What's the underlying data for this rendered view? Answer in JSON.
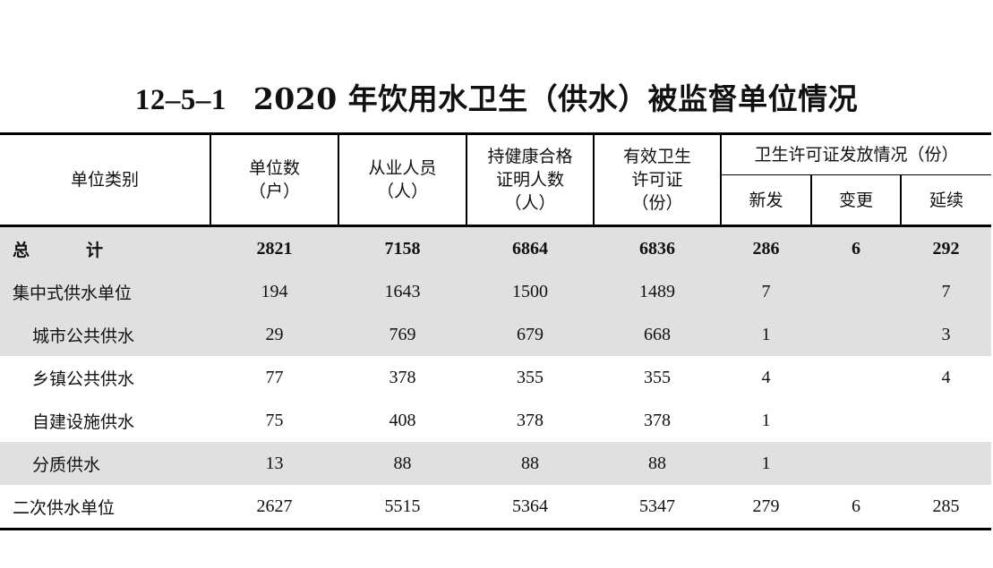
{
  "title": {
    "code": "12–5–1",
    "text": "2020 年饮用水卫生（供水）被监督单位情况"
  },
  "header": {
    "category": "单位类别",
    "units": [
      "单位数",
      "（户）"
    ],
    "staff": [
      "从业人员",
      "（人）"
    ],
    "certified": [
      "持健康合格",
      "证明人数",
      "（人）"
    ],
    "permits": [
      "有效卫生",
      "许可证",
      "（份）"
    ],
    "issuance_group": "卫生许可证发放情况（份）",
    "issuance_new": "新发",
    "issuance_change": "变更",
    "issuance_renew": "延续"
  },
  "rows": [
    {
      "label": "总　计",
      "units": "2821",
      "staff": "7158",
      "certified": "6864",
      "permits": "6836",
      "new": "286",
      "change": "6",
      "renew": "292"
    },
    {
      "label": "集中式供水单位",
      "units": "194",
      "staff": "1643",
      "certified": "1500",
      "permits": "1489",
      "new": "7",
      "change": "",
      "renew": "7"
    },
    {
      "label": "城市公共供水",
      "units": "29",
      "staff": "769",
      "certified": "679",
      "permits": "668",
      "new": "1",
      "change": "",
      "renew": "3"
    },
    {
      "label": "乡镇公共供水",
      "units": "77",
      "staff": "378",
      "certified": "355",
      "permits": "355",
      "new": "4",
      "change": "",
      "renew": "4"
    },
    {
      "label": "自建设施供水",
      "units": "75",
      "staff": "408",
      "certified": "378",
      "permits": "378",
      "new": "1",
      "change": "",
      "renew": ""
    },
    {
      "label": "分质供水",
      "units": "13",
      "staff": "88",
      "certified": "88",
      "permits": "88",
      "new": "1",
      "change": "",
      "renew": ""
    },
    {
      "label": "二次供水单位",
      "units": "2627",
      "staff": "5515",
      "certified": "5364",
      "permits": "5347",
      "new": "279",
      "change": "6",
      "renew": "285"
    }
  ]
}
